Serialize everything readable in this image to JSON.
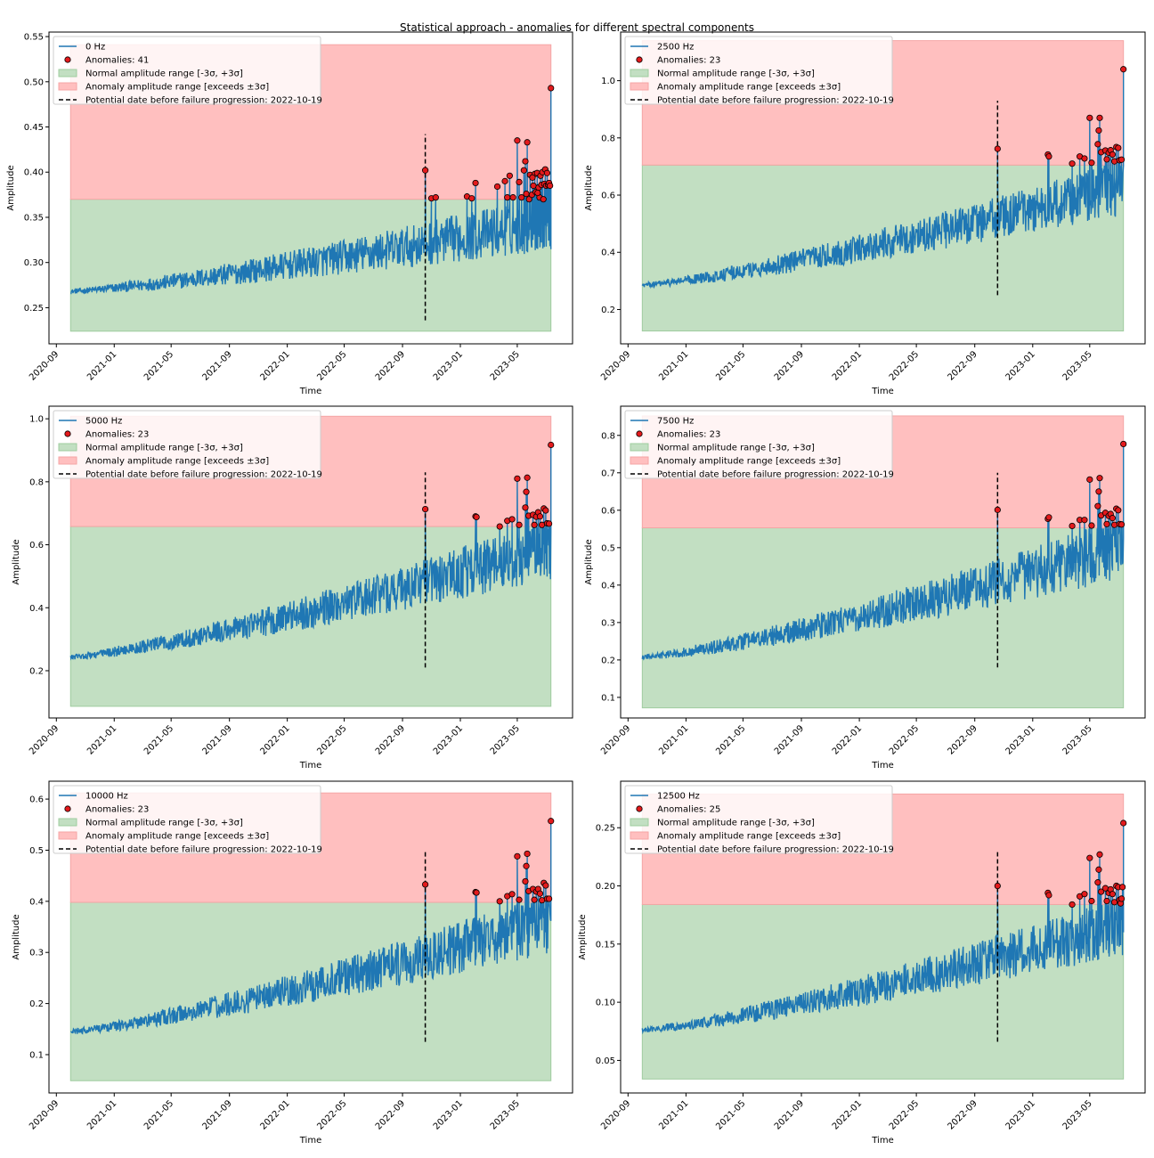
{
  "figure": {
    "title": "Statistical approach - anomalies for different spectral components"
  },
  "colors": {
    "signal": "#1f77b4",
    "normal_band": "#c2dfc2",
    "anomaly_band": "#ffbfbf",
    "anomaly_point": "#e31a1c",
    "failure_line": "#000000"
  },
  "chart_data": [
    {
      "type": "line",
      "series": [
        {
          "name": "0 Hz"
        }
      ],
      "anomaly_legend": "Anomalies: 41",
      "normal_legend": "Normal amplitude range [-3σ, +3σ]",
      "anomaly_band_legend": "Anomaly amplitude range [exceeds ±3σ]",
      "failure_legend": "Potential date before failure progression: 2022-10-19",
      "xlabel": "Time",
      "ylabel": "Amplitude",
      "x_ticks": [
        "2020-09",
        "2021-01",
        "2021-05",
        "2021-09",
        "2022-01",
        "2022-05",
        "2022-09",
        "2023-01",
        "2023-05"
      ],
      "y_ticks": [
        0.25,
        0.3,
        0.35,
        0.4,
        0.45,
        0.5,
        0.55
      ],
      "ylim": [
        0.21,
        0.555
      ],
      "base_start": 0.268,
      "base_end": 0.345,
      "noise": 0.016,
      "normal_range": [
        0.224,
        0.37
      ],
      "anomaly_range": [
        0.37,
        0.541
      ],
      "failure_line_range": [
        0.236,
        0.442
      ],
      "failure_date": "2022-10-19",
      "anomalies": [
        {
          "date": "2022-10-19",
          "value": 0.402
        },
        {
          "date": "2022-11-01",
          "value": 0.371
        },
        {
          "date": "2022-11-10",
          "value": 0.372
        },
        {
          "date": "2023-01-15",
          "value": 0.373
        },
        {
          "date": "2023-01-25",
          "value": 0.371
        },
        {
          "date": "2023-02-02",
          "value": 0.388
        },
        {
          "date": "2023-03-20",
          "value": 0.384
        },
        {
          "date": "2023-04-05",
          "value": 0.39
        },
        {
          "date": "2023-04-10",
          "value": 0.372
        },
        {
          "date": "2023-04-15",
          "value": 0.396
        },
        {
          "date": "2023-04-22",
          "value": 0.372
        },
        {
          "date": "2023-05-01",
          "value": 0.435
        },
        {
          "date": "2023-05-05",
          "value": 0.389
        },
        {
          "date": "2023-05-15",
          "value": 0.402
        },
        {
          "date": "2023-05-18",
          "value": 0.412
        },
        {
          "date": "2023-05-20",
          "value": 0.376
        },
        {
          "date": "2023-05-22",
          "value": 0.433
        },
        {
          "date": "2023-05-26",
          "value": 0.37
        },
        {
          "date": "2023-05-28",
          "value": 0.397
        },
        {
          "date": "2023-06-01",
          "value": 0.375
        },
        {
          "date": "2023-06-04",
          "value": 0.385
        },
        {
          "date": "2023-06-07",
          "value": 0.398
        },
        {
          "date": "2023-06-09",
          "value": 0.378
        },
        {
          "date": "2023-06-12",
          "value": 0.399
        },
        {
          "date": "2023-06-15",
          "value": 0.383
        },
        {
          "date": "2023-06-17",
          "value": 0.372
        },
        {
          "date": "2023-06-19",
          "value": 0.396
        },
        {
          "date": "2023-06-21",
          "value": 0.386
        },
        {
          "date": "2023-06-23",
          "value": 0.4
        },
        {
          "date": "2023-06-25",
          "value": 0.37
        },
        {
          "date": "2023-06-27",
          "value": 0.387
        },
        {
          "date": "2023-06-29",
          "value": 0.403
        },
        {
          "date": "2023-07-01",
          "value": 0.385
        },
        {
          "date": "2023-07-03",
          "value": 0.399
        },
        {
          "date": "2023-07-05",
          "value": 0.386
        },
        {
          "date": "2023-07-07",
          "value": 0.388
        },
        {
          "date": "2023-07-09",
          "value": 0.385
        },
        {
          "date": "2023-07-11",
          "value": 0.493
        },
        {
          "date": "2023-06-13",
          "value": 0.377
        },
        {
          "date": "2023-06-02",
          "value": 0.394
        },
        {
          "date": "2023-05-10",
          "value": 0.372
        }
      ]
    },
    {
      "type": "line",
      "series": [
        {
          "name": "2500 Hz"
        }
      ],
      "anomaly_legend": "Anomalies: 23",
      "normal_legend": "Normal amplitude range [-3σ, +3σ]",
      "anomaly_band_legend": "Anomaly amplitude range [exceeds ±3σ]",
      "failure_legend": "Potential date before failure progression: 2022-10-19",
      "xlabel": "Time",
      "ylabel": "Amplitude",
      "x_ticks": [
        "2020-09",
        "2021-01",
        "2021-05",
        "2021-09",
        "2022-01",
        "2022-05",
        "2022-09",
        "2023-01",
        "2023-05"
      ],
      "y_ticks": [
        0.2,
        0.4,
        0.6,
        0.8,
        1.0
      ],
      "ylim": [
        0.08,
        1.17
      ],
      "base_start": 0.285,
      "base_end": 0.63,
      "noise": 0.05,
      "normal_range": [
        0.125,
        0.705
      ],
      "anomaly_range": [
        0.705,
        1.14
      ],
      "failure_line_range": [
        0.25,
        0.93
      ],
      "failure_date": "2022-10-19",
      "anomalies": [
        {
          "date": "2022-10-19",
          "value": 0.762
        },
        {
          "date": "2023-02-02",
          "value": 0.742
        },
        {
          "date": "2023-02-04",
          "value": 0.735
        },
        {
          "date": "2023-03-25",
          "value": 0.71
        },
        {
          "date": "2023-04-10",
          "value": 0.735
        },
        {
          "date": "2023-04-20",
          "value": 0.728
        },
        {
          "date": "2023-05-01",
          "value": 0.87
        },
        {
          "date": "2023-05-05",
          "value": 0.713
        },
        {
          "date": "2023-05-18",
          "value": 0.778
        },
        {
          "date": "2023-05-20",
          "value": 0.826
        },
        {
          "date": "2023-05-22",
          "value": 0.87
        },
        {
          "date": "2023-05-25",
          "value": 0.75
        },
        {
          "date": "2023-06-03",
          "value": 0.756
        },
        {
          "date": "2023-06-06",
          "value": 0.725
        },
        {
          "date": "2023-06-10",
          "value": 0.748
        },
        {
          "date": "2023-06-14",
          "value": 0.757
        },
        {
          "date": "2023-06-18",
          "value": 0.742
        },
        {
          "date": "2023-06-22",
          "value": 0.718
        },
        {
          "date": "2023-06-26",
          "value": 0.768
        },
        {
          "date": "2023-06-30",
          "value": 0.765
        },
        {
          "date": "2023-07-03",
          "value": 0.722
        },
        {
          "date": "2023-07-07",
          "value": 0.724
        },
        {
          "date": "2023-07-11",
          "value": 1.04
        }
      ]
    },
    {
      "type": "line",
      "series": [
        {
          "name": "5000 Hz"
        }
      ],
      "anomaly_legend": "Anomalies: 23",
      "normal_legend": "Normal amplitude range [-3σ, +3σ]",
      "anomaly_band_legend": "Anomaly amplitude range [exceeds ±3σ]",
      "failure_legend": "Potential date before failure progression: 2022-10-19",
      "xlabel": "Time",
      "ylabel": "Amplitude",
      "x_ticks": [
        "2020-09",
        "2021-01",
        "2021-05",
        "2021-09",
        "2022-01",
        "2022-05",
        "2022-09",
        "2023-01",
        "2023-05"
      ],
      "y_ticks": [
        0.2,
        0.4,
        0.6,
        0.8,
        1.0
      ],
      "ylim": [
        0.05,
        1.04
      ],
      "base_start": 0.243,
      "base_end": 0.59,
      "noise": 0.05,
      "normal_range": [
        0.087,
        0.658
      ],
      "anomaly_range": [
        0.658,
        1.008
      ],
      "failure_line_range": [
        0.21,
        0.83
      ],
      "failure_date": "2022-10-19",
      "anomalies": [
        {
          "date": "2022-10-19",
          "value": 0.713
        },
        {
          "date": "2023-02-02",
          "value": 0.69
        },
        {
          "date": "2023-02-04",
          "value": 0.688
        },
        {
          "date": "2023-03-25",
          "value": 0.658
        },
        {
          "date": "2023-04-10",
          "value": 0.676
        },
        {
          "date": "2023-04-20",
          "value": 0.681
        },
        {
          "date": "2023-05-01",
          "value": 0.81
        },
        {
          "date": "2023-05-05",
          "value": 0.663
        },
        {
          "date": "2023-05-18",
          "value": 0.718
        },
        {
          "date": "2023-05-20",
          "value": 0.768
        },
        {
          "date": "2023-05-22",
          "value": 0.813
        },
        {
          "date": "2023-05-25",
          "value": 0.692
        },
        {
          "date": "2023-06-03",
          "value": 0.695
        },
        {
          "date": "2023-06-06",
          "value": 0.663
        },
        {
          "date": "2023-06-10",
          "value": 0.689
        },
        {
          "date": "2023-06-14",
          "value": 0.703
        },
        {
          "date": "2023-06-18",
          "value": 0.69
        },
        {
          "date": "2023-06-22",
          "value": 0.663
        },
        {
          "date": "2023-06-26",
          "value": 0.715
        },
        {
          "date": "2023-06-30",
          "value": 0.709
        },
        {
          "date": "2023-07-03",
          "value": 0.668
        },
        {
          "date": "2023-07-07",
          "value": 0.667
        },
        {
          "date": "2023-07-11",
          "value": 0.917
        }
      ]
    },
    {
      "type": "line",
      "series": [
        {
          "name": "7500 Hz"
        }
      ],
      "anomaly_legend": "Anomalies: 23",
      "normal_legend": "Normal amplitude range [-3σ, +3σ]",
      "anomaly_band_legend": "Anomaly amplitude range [exceeds ±3σ]",
      "failure_legend": "Potential date before failure progression: 2022-10-19",
      "xlabel": "Time",
      "ylabel": "Amplitude",
      "x_ticks": [
        "2020-09",
        "2021-01",
        "2021-05",
        "2021-09",
        "2022-01",
        "2022-05",
        "2022-09",
        "2023-01",
        "2023-05"
      ],
      "y_ticks": [
        0.1,
        0.2,
        0.3,
        0.4,
        0.5,
        0.6,
        0.7,
        0.8
      ],
      "ylim": [
        0.045,
        0.878
      ],
      "base_start": 0.207,
      "base_end": 0.5,
      "noise": 0.042,
      "normal_range": [
        0.072,
        0.553
      ],
      "anomaly_range": [
        0.553,
        0.852
      ],
      "failure_line_range": [
        0.18,
        0.7
      ],
      "failure_date": "2022-10-19",
      "anomalies": [
        {
          "date": "2022-10-19",
          "value": 0.601
        },
        {
          "date": "2023-02-02",
          "value": 0.577
        },
        {
          "date": "2023-02-04",
          "value": 0.581
        },
        {
          "date": "2023-03-25",
          "value": 0.558
        },
        {
          "date": "2023-04-10",
          "value": 0.574
        },
        {
          "date": "2023-04-20",
          "value": 0.574
        },
        {
          "date": "2023-05-01",
          "value": 0.682
        },
        {
          "date": "2023-05-05",
          "value": 0.559
        },
        {
          "date": "2023-05-18",
          "value": 0.611
        },
        {
          "date": "2023-05-20",
          "value": 0.65
        },
        {
          "date": "2023-05-22",
          "value": 0.686
        },
        {
          "date": "2023-05-25",
          "value": 0.586
        },
        {
          "date": "2023-06-03",
          "value": 0.593
        },
        {
          "date": "2023-06-06",
          "value": 0.563
        },
        {
          "date": "2023-06-10",
          "value": 0.585
        },
        {
          "date": "2023-06-14",
          "value": 0.59
        },
        {
          "date": "2023-06-18",
          "value": 0.579
        },
        {
          "date": "2023-06-22",
          "value": 0.561
        },
        {
          "date": "2023-06-26",
          "value": 0.604
        },
        {
          "date": "2023-06-30",
          "value": 0.6
        },
        {
          "date": "2023-07-03",
          "value": 0.563
        },
        {
          "date": "2023-07-07",
          "value": 0.562
        },
        {
          "date": "2023-07-11",
          "value": 0.777
        }
      ]
    },
    {
      "type": "line",
      "series": [
        {
          "name": "10000 Hz"
        }
      ],
      "anomaly_legend": "Anomalies: 23",
      "normal_legend": "Normal amplitude range [-3σ, +3σ]",
      "anomaly_band_legend": "Anomaly amplitude range [exceeds ±3σ]",
      "failure_legend": "Potential date before failure progression: 2022-10-19",
      "xlabel": "Time",
      "ylabel": "Amplitude",
      "x_ticks": [
        "2020-09",
        "2021-01",
        "2021-05",
        "2021-09",
        "2022-01",
        "2022-05",
        "2022-09",
        "2023-01",
        "2023-05"
      ],
      "y_ticks": [
        0.1,
        0.2,
        0.3,
        0.4,
        0.5,
        0.6
      ],
      "ylim": [
        0.025,
        0.635
      ],
      "base_start": 0.145,
      "base_end": 0.36,
      "noise": 0.031,
      "normal_range": [
        0.049,
        0.398
      ],
      "anomaly_range": [
        0.398,
        0.612
      ],
      "failure_line_range": [
        0.125,
        0.5
      ],
      "failure_date": "2022-10-19",
      "anomalies": [
        {
          "date": "2022-10-19",
          "value": 0.433
        },
        {
          "date": "2023-02-02",
          "value": 0.418
        },
        {
          "date": "2023-02-04",
          "value": 0.417
        },
        {
          "date": "2023-03-25",
          "value": 0.4
        },
        {
          "date": "2023-04-10",
          "value": 0.41
        },
        {
          "date": "2023-04-20",
          "value": 0.414
        },
        {
          "date": "2023-05-01",
          "value": 0.488
        },
        {
          "date": "2023-05-05",
          "value": 0.403
        },
        {
          "date": "2023-05-18",
          "value": 0.439
        },
        {
          "date": "2023-05-20",
          "value": 0.469
        },
        {
          "date": "2023-05-22",
          "value": 0.493
        },
        {
          "date": "2023-05-25",
          "value": 0.42
        },
        {
          "date": "2023-06-03",
          "value": 0.424
        },
        {
          "date": "2023-06-06",
          "value": 0.403
        },
        {
          "date": "2023-06-10",
          "value": 0.419
        },
        {
          "date": "2023-06-14",
          "value": 0.424
        },
        {
          "date": "2023-06-18",
          "value": 0.415
        },
        {
          "date": "2023-06-22",
          "value": 0.402
        },
        {
          "date": "2023-06-26",
          "value": 0.436
        },
        {
          "date": "2023-06-30",
          "value": 0.431
        },
        {
          "date": "2023-07-03",
          "value": 0.405
        },
        {
          "date": "2023-07-07",
          "value": 0.405
        },
        {
          "date": "2023-07-11",
          "value": 0.557
        }
      ]
    },
    {
      "type": "line",
      "series": [
        {
          "name": "12500 Hz"
        }
      ],
      "anomaly_legend": "Anomalies: 25",
      "normal_legend": "Normal amplitude range [-3σ, +3σ]",
      "anomaly_band_legend": "Anomaly amplitude range [exceeds ±3σ]",
      "failure_legend": "Potential date before failure progression: 2022-10-19",
      "xlabel": "Time",
      "ylabel": "Amplitude",
      "x_ticks": [
        "2020-09",
        "2021-01",
        "2021-05",
        "2021-09",
        "2022-01",
        "2022-05",
        "2022-09",
        "2023-01",
        "2023-05"
      ],
      "y_ticks": [
        0.05,
        0.1,
        0.15,
        0.2,
        0.25
      ],
      "ylim": [
        0.022,
        0.29
      ],
      "base_start": 0.076,
      "base_end": 0.166,
      "noise": 0.013,
      "normal_range": [
        0.034,
        0.184
      ],
      "anomaly_range": [
        0.184,
        0.279
      ],
      "failure_line_range": [
        0.066,
        0.229
      ],
      "failure_date": "2022-10-19",
      "anomalies": [
        {
          "date": "2022-10-19",
          "value": 0.2
        },
        {
          "date": "2023-02-02",
          "value": 0.194
        },
        {
          "date": "2023-02-04",
          "value": 0.192
        },
        {
          "date": "2023-03-25",
          "value": 0.184
        },
        {
          "date": "2023-04-10",
          "value": 0.191
        },
        {
          "date": "2023-04-20",
          "value": 0.193
        },
        {
          "date": "2023-05-01",
          "value": 0.224
        },
        {
          "date": "2023-05-05",
          "value": 0.187
        },
        {
          "date": "2023-05-18",
          "value": 0.203
        },
        {
          "date": "2023-05-20",
          "value": 0.214
        },
        {
          "date": "2023-05-22",
          "value": 0.227
        },
        {
          "date": "2023-05-25",
          "value": 0.195
        },
        {
          "date": "2023-06-03",
          "value": 0.198
        },
        {
          "date": "2023-06-06",
          "value": 0.187
        },
        {
          "date": "2023-06-10",
          "value": 0.194
        },
        {
          "date": "2023-06-14",
          "value": 0.197
        },
        {
          "date": "2023-06-18",
          "value": 0.193
        },
        {
          "date": "2023-06-22",
          "value": 0.186
        },
        {
          "date": "2023-06-26",
          "value": 0.2
        },
        {
          "date": "2023-06-30",
          "value": 0.199
        },
        {
          "date": "2023-07-03",
          "value": 0.188
        },
        {
          "date": "2023-07-05",
          "value": 0.185
        },
        {
          "date": "2023-07-07",
          "value": 0.189
        },
        {
          "date": "2023-07-09",
          "value": 0.199
        },
        {
          "date": "2023-07-11",
          "value": 0.254
        }
      ]
    }
  ]
}
